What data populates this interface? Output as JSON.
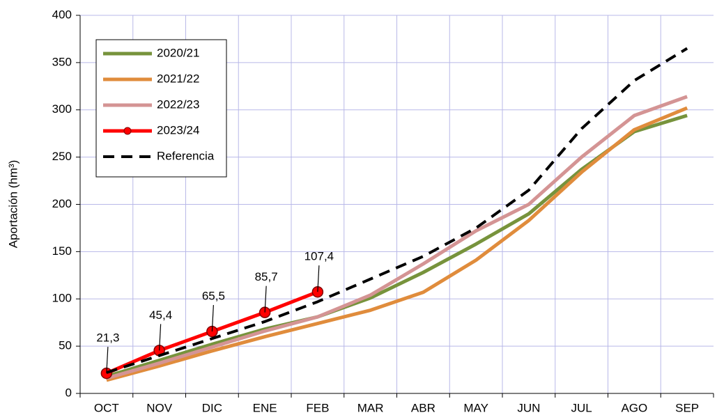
{
  "chart_data": {
    "type": "line",
    "y_label": "Aportación (hm³)",
    "categories": [
      "OCT",
      "NOV",
      "DIC",
      "ENE",
      "FEB",
      "MAR",
      "ABR",
      "MAY",
      "JUN",
      "JUL",
      "AGO",
      "SEP"
    ],
    "series": [
      {
        "name": "2020/21",
        "color": "#77933c",
        "values": [
          18,
          35,
          52,
          68,
          81,
          101,
          128,
          158,
          190,
          237,
          277,
          294
        ]
      },
      {
        "name": "2021/22",
        "color": "#e08c3c",
        "values": [
          14,
          29,
          45,
          60,
          74,
          88,
          107,
          141,
          183,
          234,
          279,
          302
        ]
      },
      {
        "name": "2022/23",
        "color": "#d49494",
        "values": [
          16,
          32,
          49,
          66,
          81,
          104,
          137,
          172,
          200,
          250,
          294,
          314
        ]
      },
      {
        "name": "2023/24",
        "color": "#ff0000",
        "markers": true,
        "values": [
          21.3,
          45.4,
          65.5,
          85.7,
          107.4,
          null,
          null,
          null,
          null,
          null,
          null,
          null
        ],
        "value_labels": [
          "21,3",
          "45,4",
          "65,5",
          "85,7",
          "107,4",
          null,
          null,
          null,
          null,
          null,
          null,
          null
        ]
      },
      {
        "name": "Referencia",
        "color": "#000000",
        "dashed": true,
        "values": [
          22,
          40,
          58,
          76,
          97,
          121,
          145,
          175,
          215,
          280,
          331,
          365
        ]
      }
    ],
    "ylim": [
      0,
      400
    ],
    "yticks": [
      0,
      50,
      100,
      150,
      200,
      250,
      300,
      350,
      400
    ],
    "grid": true,
    "legend": "upper left"
  }
}
